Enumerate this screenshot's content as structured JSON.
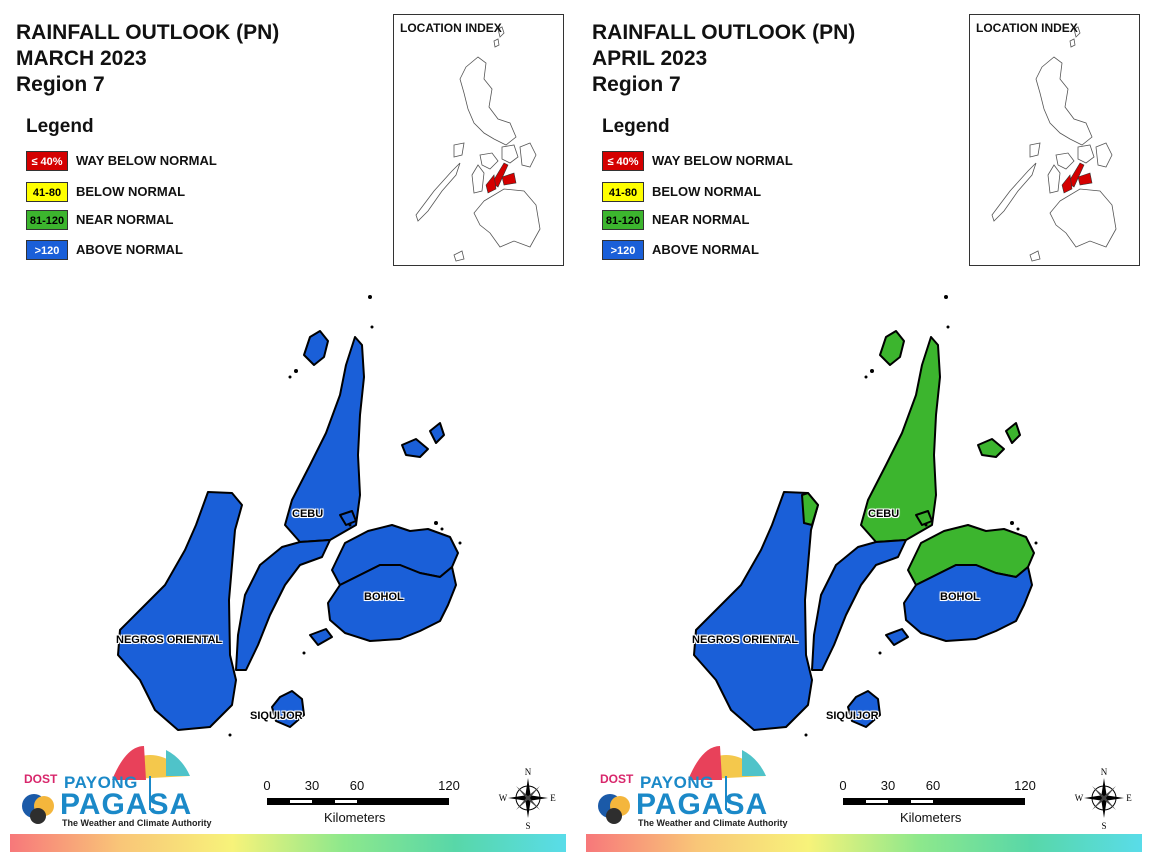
{
  "legend": {
    "title": "Legend",
    "items": [
      {
        "swatch": "≤ 40%",
        "label": "WAY BELOW NORMAL",
        "color": "#d40000",
        "text_color": "#ffffff"
      },
      {
        "swatch": "41-80",
        "label": "BELOW NORMAL",
        "color": "#ffff00",
        "text_color": "#000000"
      },
      {
        "swatch": "81-120",
        "label": "NEAR NORMAL",
        "color": "#3cb52e",
        "text_color": "#000000"
      },
      {
        "swatch": ">120",
        "label": "ABOVE NORMAL",
        "color": "#1a5fd8",
        "text_color": "#ffffff"
      }
    ]
  },
  "panels": [
    {
      "title_line1": "RAINFALL OUTLOOK (PN)",
      "title_line2": "MARCH 2023",
      "title_line3": "Region 7",
      "location_index": "LOCATION INDEX",
      "provinces": {
        "cebu": "CEBU",
        "bohol": "BOHOL",
        "negros_oriental": "NEGROS ORIENTAL",
        "siquijor": "SIQUIJOR"
      },
      "outlook": {
        "cebu_north": "ABOVE NORMAL",
        "cebu_south": "ABOVE NORMAL",
        "bohol_north": "ABOVE NORMAL",
        "bohol_south": "ABOVE NORMAL",
        "negros_oriental": "ABOVE NORMAL",
        "siquijor": "ABOVE NORMAL"
      }
    },
    {
      "title_line1": "RAINFALL OUTLOOK (PN)",
      "title_line2": "APRIL 2023",
      "title_line3": "Region 7",
      "location_index": "LOCATION INDEX",
      "provinces": {
        "cebu": "CEBU",
        "bohol": "BOHOL",
        "negros_oriental": "NEGROS ORIENTAL",
        "siquijor": "SIQUIJOR"
      },
      "outlook": {
        "cebu_north": "NEAR NORMAL",
        "cebu_south": "ABOVE NORMAL",
        "bohol_north": "NEAR NORMAL",
        "bohol_south": "ABOVE NORMAL",
        "negros_oriental": "ABOVE NORMAL",
        "siquijor": "ABOVE NORMAL"
      }
    }
  ],
  "logo": {
    "dost": "DOST",
    "payong": "PAYONG",
    "pagasa": "PAGASA",
    "tagline": "The Weather and Climate Authority"
  },
  "scale": {
    "ticks": [
      "0",
      "30",
      "60",
      "120"
    ],
    "units": "Kilometers"
  },
  "compass": {
    "n": "N",
    "s": "S",
    "e": "E",
    "w": "W"
  }
}
